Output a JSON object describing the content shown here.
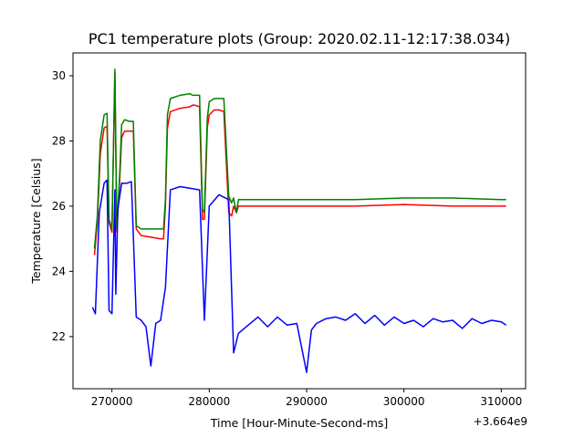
{
  "chart_data": {
    "type": "line",
    "title": "PC1 temperature plots (Group: 2020.02.11-12:17:38.034)",
    "xlabel": "Time [Hour-Minute-Second-ms]",
    "ylabel": "Temperature [Celsius]",
    "x_offset_label": "+3.664e9",
    "xlim": [
      266000,
      312500
    ],
    "ylim": [
      20.4,
      30.7
    ],
    "x_ticks": [
      270000,
      280000,
      290000,
      300000,
      310000
    ],
    "x_tick_labels": [
      "270000",
      "280000",
      "290000",
      "300000",
      "310000"
    ],
    "y_ticks": [
      22,
      24,
      26,
      28,
      30
    ],
    "y_tick_labels": [
      "22",
      "24",
      "26",
      "28",
      "30"
    ],
    "grid": false,
    "series": [
      {
        "color": "#ff0000",
        "x": [
          268200,
          268500,
          268800,
          269200,
          269500,
          269700,
          270000,
          270300,
          270500,
          270800,
          271000,
          271300,
          271800,
          272200,
          272500,
          273000,
          274000,
          275000,
          275300,
          275500,
          275700,
          276000,
          277000,
          278000,
          278300,
          278500,
          279000,
          279300,
          279500,
          279800,
          280000,
          280500,
          281000,
          281500,
          282000,
          282300,
          282500,
          282800,
          283000,
          285000,
          290000,
          295000,
          300000,
          305000,
          310000,
          310500
        ],
        "y": [
          24.5,
          25.5,
          27.6,
          28.4,
          28.45,
          25.5,
          25.2,
          30.1,
          25.2,
          26.8,
          28.1,
          28.3,
          28.3,
          28.3,
          25.3,
          25.1,
          25.05,
          25.0,
          25.0,
          26.0,
          28.4,
          28.9,
          29.0,
          29.05,
          29.1,
          29.1,
          29.05,
          25.6,
          25.6,
          28.4,
          28.8,
          28.95,
          28.95,
          28.9,
          25.8,
          25.7,
          26.0,
          25.8,
          26.0,
          26.0,
          26.0,
          26.0,
          26.05,
          26.0,
          26.0,
          26.0
        ]
      },
      {
        "color": "#008000",
        "x": [
          268200,
          268500,
          268800,
          269200,
          269500,
          269700,
          270000,
          270300,
          270500,
          270800,
          271000,
          271300,
          271800,
          272200,
          272500,
          273000,
          274000,
          275000,
          275300,
          275500,
          275700,
          276000,
          277000,
          278000,
          278300,
          278500,
          279000,
          279300,
          279500,
          279800,
          280000,
          280500,
          281000,
          281500,
          282000,
          282300,
          282500,
          282800,
          283000,
          285000,
          290000,
          295000,
          300000,
          305000,
          310000,
          310500
        ],
        "y": [
          24.7,
          25.7,
          28.0,
          28.8,
          28.85,
          25.6,
          25.3,
          30.2,
          25.3,
          27.0,
          28.5,
          28.65,
          28.6,
          28.6,
          25.4,
          25.3,
          25.3,
          25.3,
          25.3,
          26.2,
          28.8,
          29.3,
          29.4,
          29.45,
          29.4,
          29.4,
          29.4,
          25.9,
          25.8,
          28.7,
          29.2,
          29.3,
          29.3,
          29.3,
          26.3,
          26.1,
          26.25,
          25.8,
          26.2,
          26.2,
          26.2,
          26.2,
          26.25,
          26.25,
          26.2,
          26.2
        ]
      },
      {
        "color": "#0000ff",
        "x": [
          268000,
          268300,
          268700,
          269200,
          269500,
          269700,
          270000,
          270300,
          270400,
          270600,
          271000,
          271500,
          272000,
          272500,
          273000,
          273500,
          274000,
          274500,
          275000,
          275500,
          276000,
          277000,
          278000,
          279000,
          279500,
          280000,
          281000,
          282000,
          282500,
          283000,
          284000,
          285000,
          286000,
          287000,
          288000,
          289000,
          290000,
          290500,
          291000,
          292000,
          293000,
          294000,
          295000,
          296000,
          297000,
          298000,
          299000,
          300000,
          301000,
          302000,
          303000,
          304000,
          305000,
          306000,
          307000,
          308000,
          309000,
          310000,
          310500
        ],
        "y": [
          22.9,
          22.7,
          25.8,
          26.7,
          26.8,
          22.8,
          22.7,
          26.5,
          23.3,
          25.9,
          26.7,
          26.7,
          26.75,
          22.6,
          22.5,
          22.3,
          21.1,
          22.4,
          22.5,
          23.5,
          26.5,
          26.6,
          26.55,
          26.5,
          22.5,
          26.0,
          26.35,
          26.2,
          21.5,
          22.1,
          22.35,
          22.6,
          22.3,
          22.6,
          22.35,
          22.4,
          20.9,
          22.2,
          22.4,
          22.55,
          22.6,
          22.5,
          22.7,
          22.4,
          22.65,
          22.35,
          22.6,
          22.4,
          22.5,
          22.3,
          22.55,
          22.45,
          22.5,
          22.25,
          22.55,
          22.4,
          22.5,
          22.45,
          22.35
        ]
      }
    ]
  }
}
